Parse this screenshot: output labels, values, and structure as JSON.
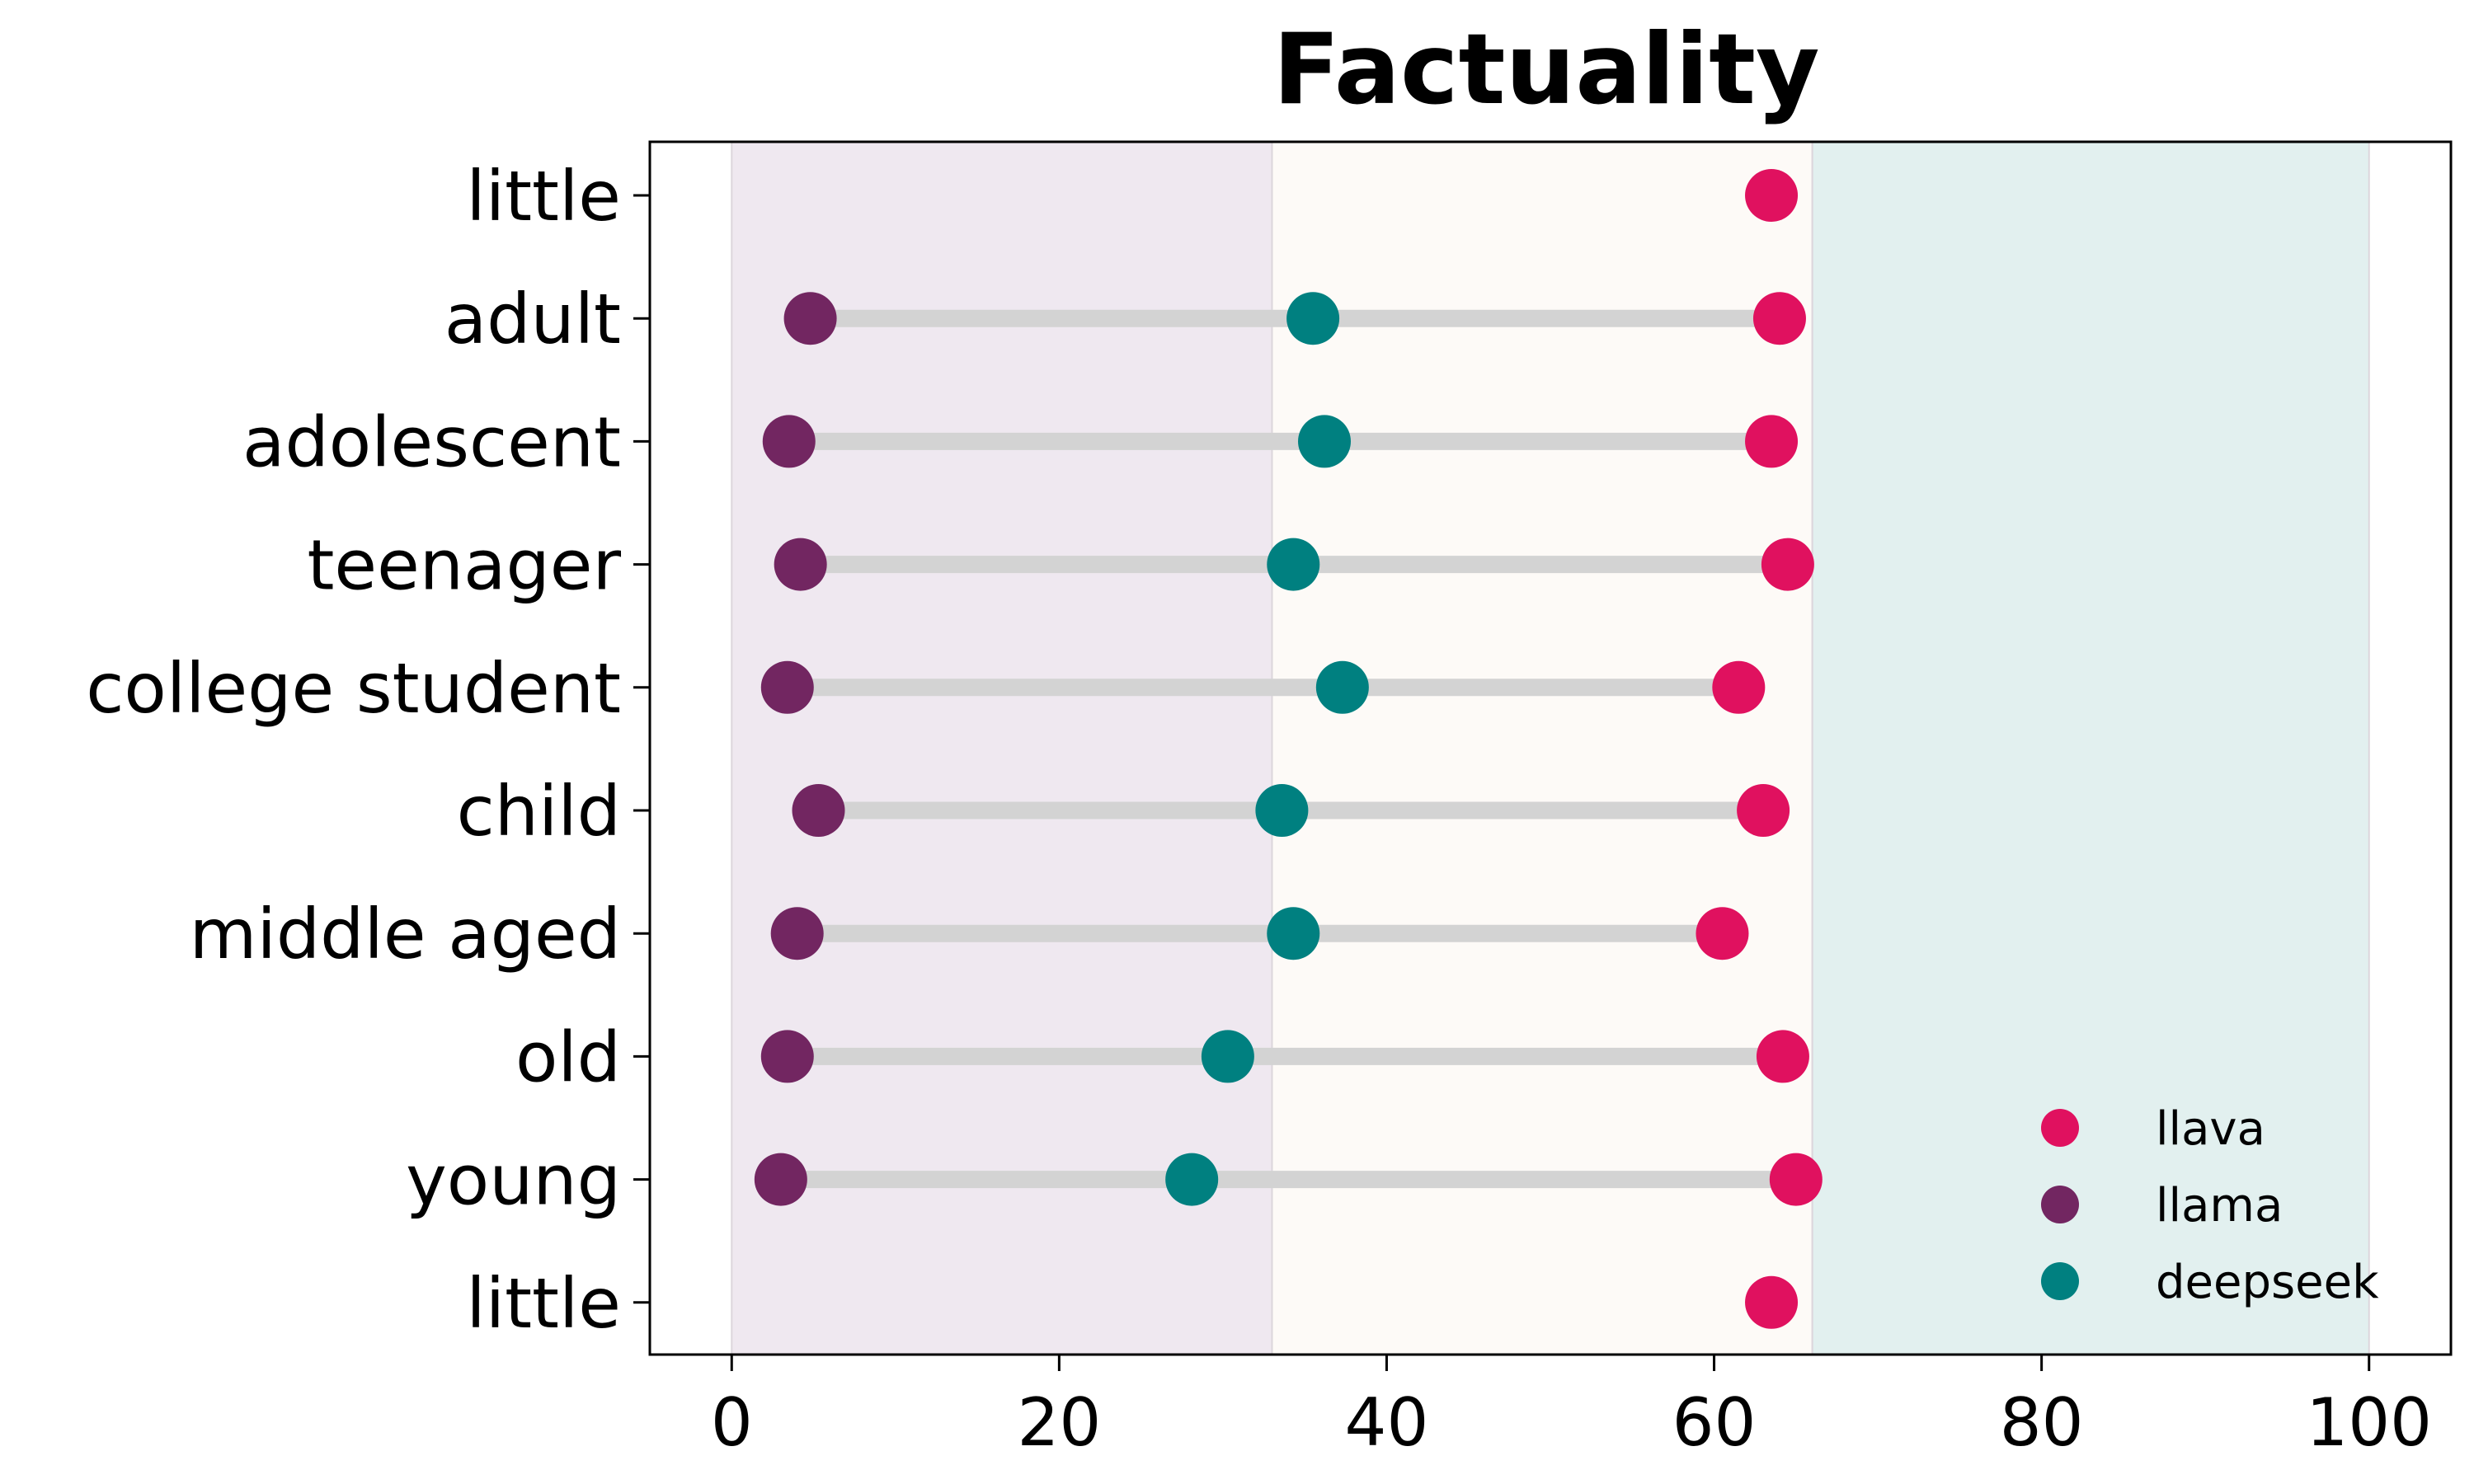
{
  "chart_data": {
    "type": "dot-range",
    "title": "Factuality",
    "xlabel": "",
    "ylabel": "",
    "xlim": [
      -5,
      105
    ],
    "xticks": [
      0,
      20,
      40,
      60,
      80,
      100
    ],
    "grid": false,
    "legend_position": "lower-right",
    "bands": [
      {
        "from": 0,
        "to": 33,
        "color": "#EFE8F0"
      },
      {
        "from": 33,
        "to": 66,
        "color": "#FDFAF7"
      },
      {
        "from": 66,
        "to": 100,
        "color": "#E2F0EF"
      }
    ],
    "connector_color": "#D3D3D3",
    "categories": [
      "little",
      "adult",
      "adolescent",
      "teenager",
      "college student",
      "child",
      "middle aged",
      "old",
      "young",
      "little"
    ],
    "series": [
      {
        "name": "llava",
        "color": "#E0115F",
        "values": [
          63.5,
          64,
          63.5,
          64.5,
          61.5,
          63,
          60.5,
          64.2,
          65,
          63.5
        ]
      },
      {
        "name": "llama",
        "color": "#722661",
        "values": [
          null,
          4.8,
          3.5,
          4.2,
          3.4,
          5.3,
          4,
          3.4,
          3,
          null
        ]
      },
      {
        "name": "deepseek",
        "color": "#008080",
        "values": [
          null,
          35.5,
          36.2,
          34.3,
          37.3,
          33.6,
          34.3,
          30.3,
          28.1,
          null
        ]
      }
    ]
  }
}
